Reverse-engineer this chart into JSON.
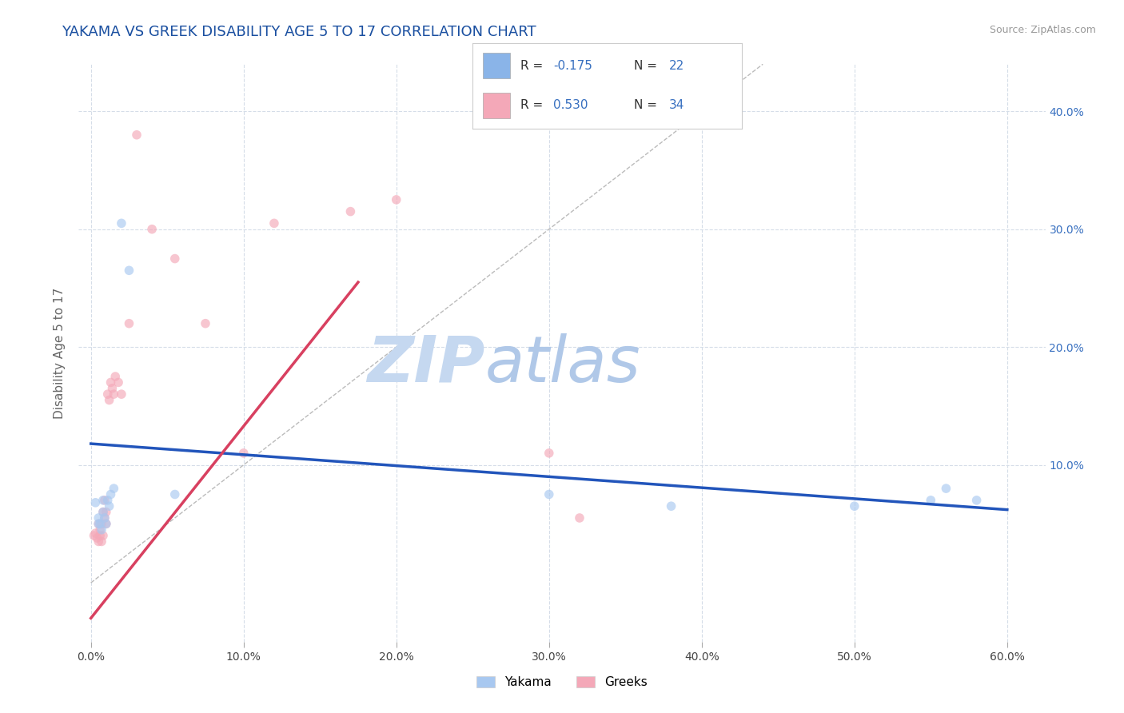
{
  "title": "YAKAMA VS GREEK DISABILITY AGE 5 TO 17 CORRELATION CHART",
  "source_text": "Source: ZipAtlas.com",
  "ylabel": "Disability Age 5 to 17",
  "xlabel_ticks": [
    "0.0%",
    "10.0%",
    "20.0%",
    "30.0%",
    "40.0%",
    "50.0%",
    "60.0%"
  ],
  "xlabel_vals": [
    0.0,
    0.1,
    0.2,
    0.3,
    0.4,
    0.5,
    0.6
  ],
  "ylabel_ticks": [
    "10.0%",
    "20.0%",
    "30.0%",
    "40.0%"
  ],
  "ylabel_vals": [
    0.1,
    0.2,
    0.3,
    0.4
  ],
  "xlim": [
    -0.008,
    0.625
  ],
  "ylim": [
    -0.05,
    0.44
  ],
  "title_color": "#1a4fa0",
  "title_fontsize": 13,
  "watermark_zip": "ZIP",
  "watermark_atlas": "atlas",
  "watermark_color": "#c5d8f0",
  "watermark_fontsize_zip": 58,
  "watermark_fontsize_atlas": 58,
  "legend_color1": "#8ab4e8",
  "legend_color2": "#f4a8b8",
  "yakama_color": "#a8c8f0",
  "greek_color": "#f4a8b8",
  "yakama_line_color": "#2255bb",
  "greek_line_color": "#d84060",
  "diagonal_color": "#bbbbbb",
  "grid_color": "#d5dde8",
  "right_tick_color": "#3870c0",
  "background_color": "#ffffff",
  "yakama_x": [
    0.003,
    0.005,
    0.005,
    0.006,
    0.007,
    0.008,
    0.008,
    0.009,
    0.01,
    0.011,
    0.012,
    0.013,
    0.015,
    0.02,
    0.025,
    0.055,
    0.3,
    0.38,
    0.5,
    0.55,
    0.56,
    0.58
  ],
  "yakama_y": [
    0.068,
    0.055,
    0.05,
    0.05,
    0.045,
    0.06,
    0.07,
    0.055,
    0.05,
    0.07,
    0.065,
    0.075,
    0.08,
    0.305,
    0.265,
    0.075,
    0.075,
    0.065,
    0.065,
    0.07,
    0.08,
    0.07
  ],
  "greek_x": [
    0.002,
    0.003,
    0.004,
    0.005,
    0.005,
    0.006,
    0.006,
    0.007,
    0.007,
    0.008,
    0.008,
    0.009,
    0.009,
    0.01,
    0.01,
    0.011,
    0.012,
    0.013,
    0.014,
    0.015,
    0.016,
    0.018,
    0.02,
    0.025,
    0.03,
    0.04,
    0.055,
    0.075,
    0.1,
    0.12,
    0.17,
    0.2,
    0.3,
    0.32
  ],
  "greek_y": [
    0.04,
    0.042,
    0.038,
    0.05,
    0.035,
    0.045,
    0.04,
    0.05,
    0.035,
    0.06,
    0.04,
    0.07,
    0.055,
    0.06,
    0.05,
    0.16,
    0.155,
    0.17,
    0.165,
    0.16,
    0.175,
    0.17,
    0.16,
    0.22,
    0.38,
    0.3,
    0.275,
    0.22,
    0.11,
    0.305,
    0.315,
    0.325,
    0.11,
    0.055
  ],
  "marker_size": 70,
  "marker_alpha": 0.65,
  "line_width": 2.5,
  "yakama_line_x0": 0.0,
  "yakama_line_y0": 0.118,
  "yakama_line_x1": 0.6,
  "yakama_line_y1": 0.062,
  "greek_line_x0": 0.0,
  "greek_line_y0": -0.03,
  "greek_line_x1": 0.175,
  "greek_line_y1": 0.255
}
